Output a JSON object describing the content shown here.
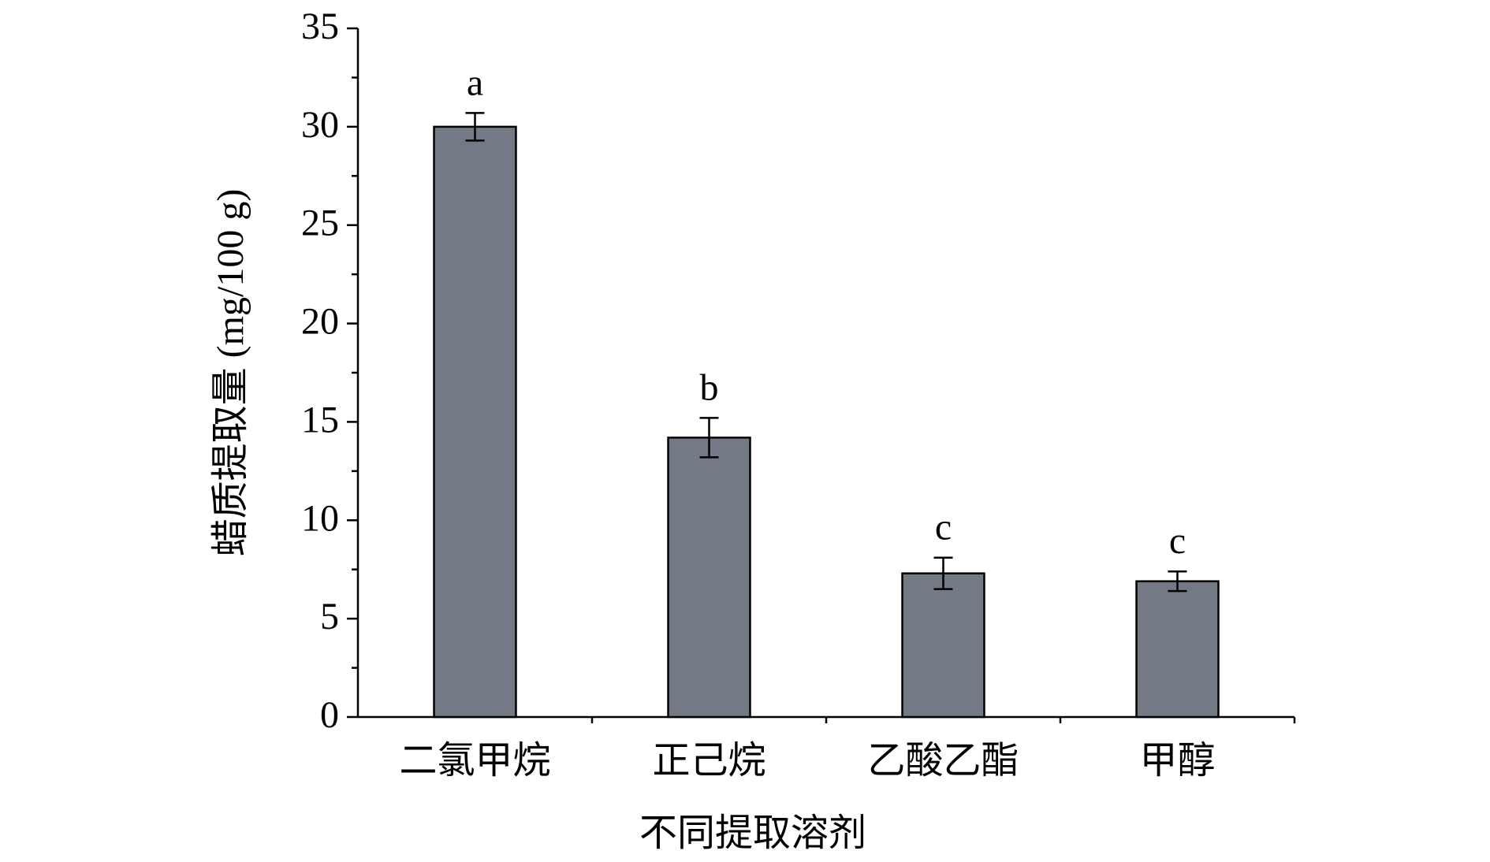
{
  "chart_data": {
    "type": "bar",
    "x_label": "不同提取溶剂",
    "y_label": "蜡质提取量 (mg/100 g)",
    "categories": [
      "二氯甲烷",
      "正己烷",
      "乙酸乙酯",
      "甲醇"
    ],
    "values": [
      30.0,
      14.2,
      7.3,
      6.9
    ],
    "errors": [
      0.7,
      1.0,
      0.8,
      0.5
    ],
    "significance_labels": [
      "a",
      "b",
      "c",
      "c"
    ],
    "color": "#737a85",
    "ylim": [
      0,
      35
    ],
    "yticks": [
      0,
      5,
      10,
      15,
      20,
      25,
      30,
      35
    ],
    "grid": false
  }
}
